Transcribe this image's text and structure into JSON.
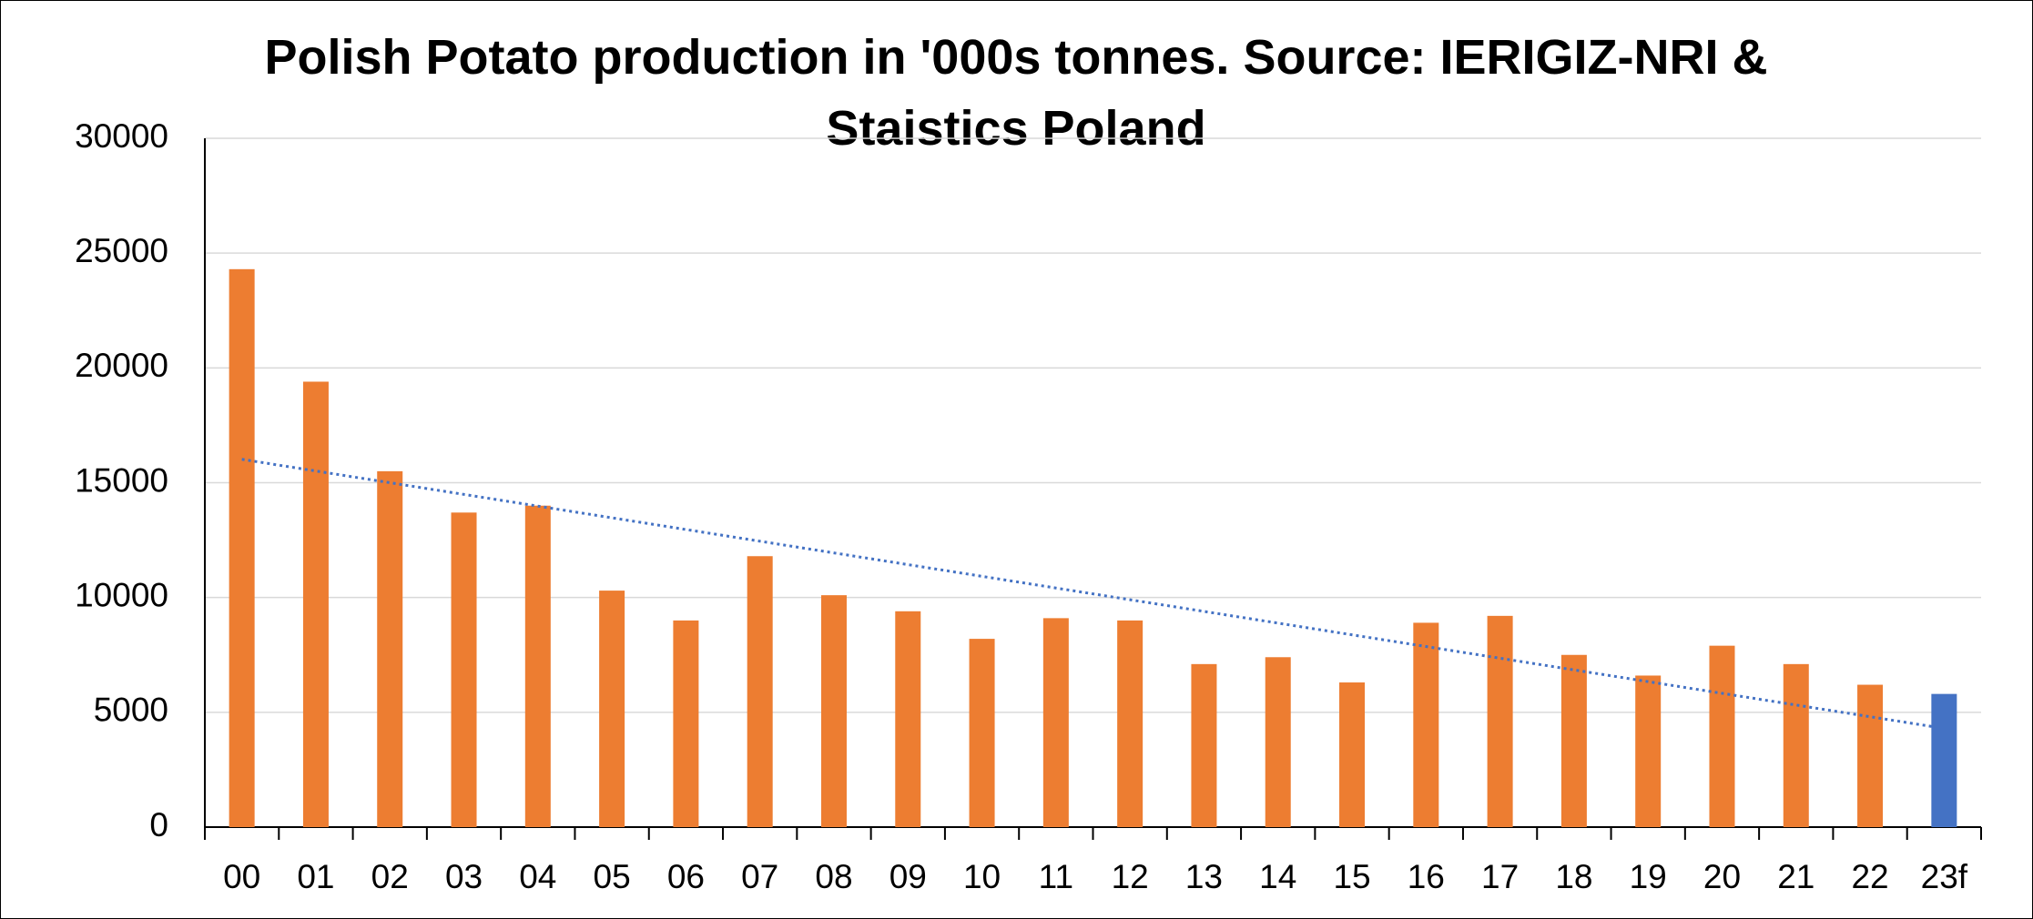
{
  "chart_data": {
    "type": "bar",
    "title": "Polish Potato production in '000s tonnes. Source: IERIGIZ-NRI & Staistics Poland",
    "categories": [
      "00",
      "01",
      "02",
      "03",
      "04",
      "05",
      "06",
      "07",
      "08",
      "09",
      "10",
      "11",
      "12",
      "13",
      "14",
      "15",
      "16",
      "17",
      "18",
      "19",
      "20",
      "21",
      "22",
      "23f"
    ],
    "values": [
      24300,
      19400,
      15500,
      13700,
      14000,
      10300,
      9000,
      11800,
      10100,
      9400,
      8200,
      9100,
      9000,
      7100,
      7400,
      6300,
      8900,
      9200,
      7500,
      6600,
      7900,
      7100,
      6200,
      5800
    ],
    "colors": [
      "#ed7d31",
      "#ed7d31",
      "#ed7d31",
      "#ed7d31",
      "#ed7d31",
      "#ed7d31",
      "#ed7d31",
      "#ed7d31",
      "#ed7d31",
      "#ed7d31",
      "#ed7d31",
      "#ed7d31",
      "#ed7d31",
      "#ed7d31",
      "#ed7d31",
      "#ed7d31",
      "#ed7d31",
      "#ed7d31",
      "#ed7d31",
      "#ed7d31",
      "#ed7d31",
      "#ed7d31",
      "#ed7d31",
      "#4472c4"
    ],
    "ylim": [
      0,
      30000
    ],
    "yticks": [
      0,
      5000,
      10000,
      15000,
      20000,
      25000,
      30000
    ],
    "grid": true,
    "trendline": {
      "kind": "linear",
      "color": "#4472c4",
      "style": "dotted"
    }
  }
}
